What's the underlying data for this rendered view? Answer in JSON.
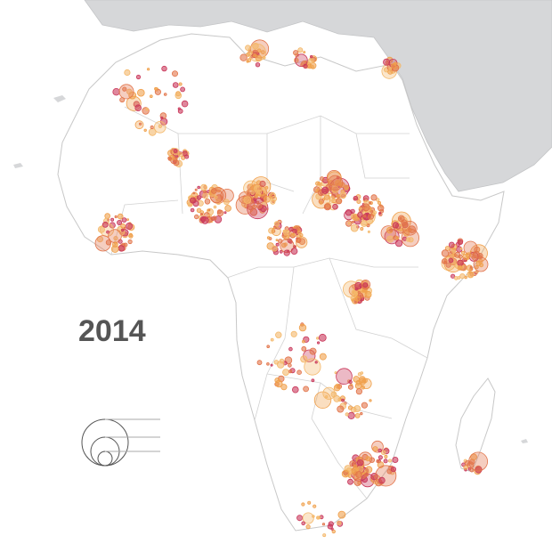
{
  "year": "2014"
}
